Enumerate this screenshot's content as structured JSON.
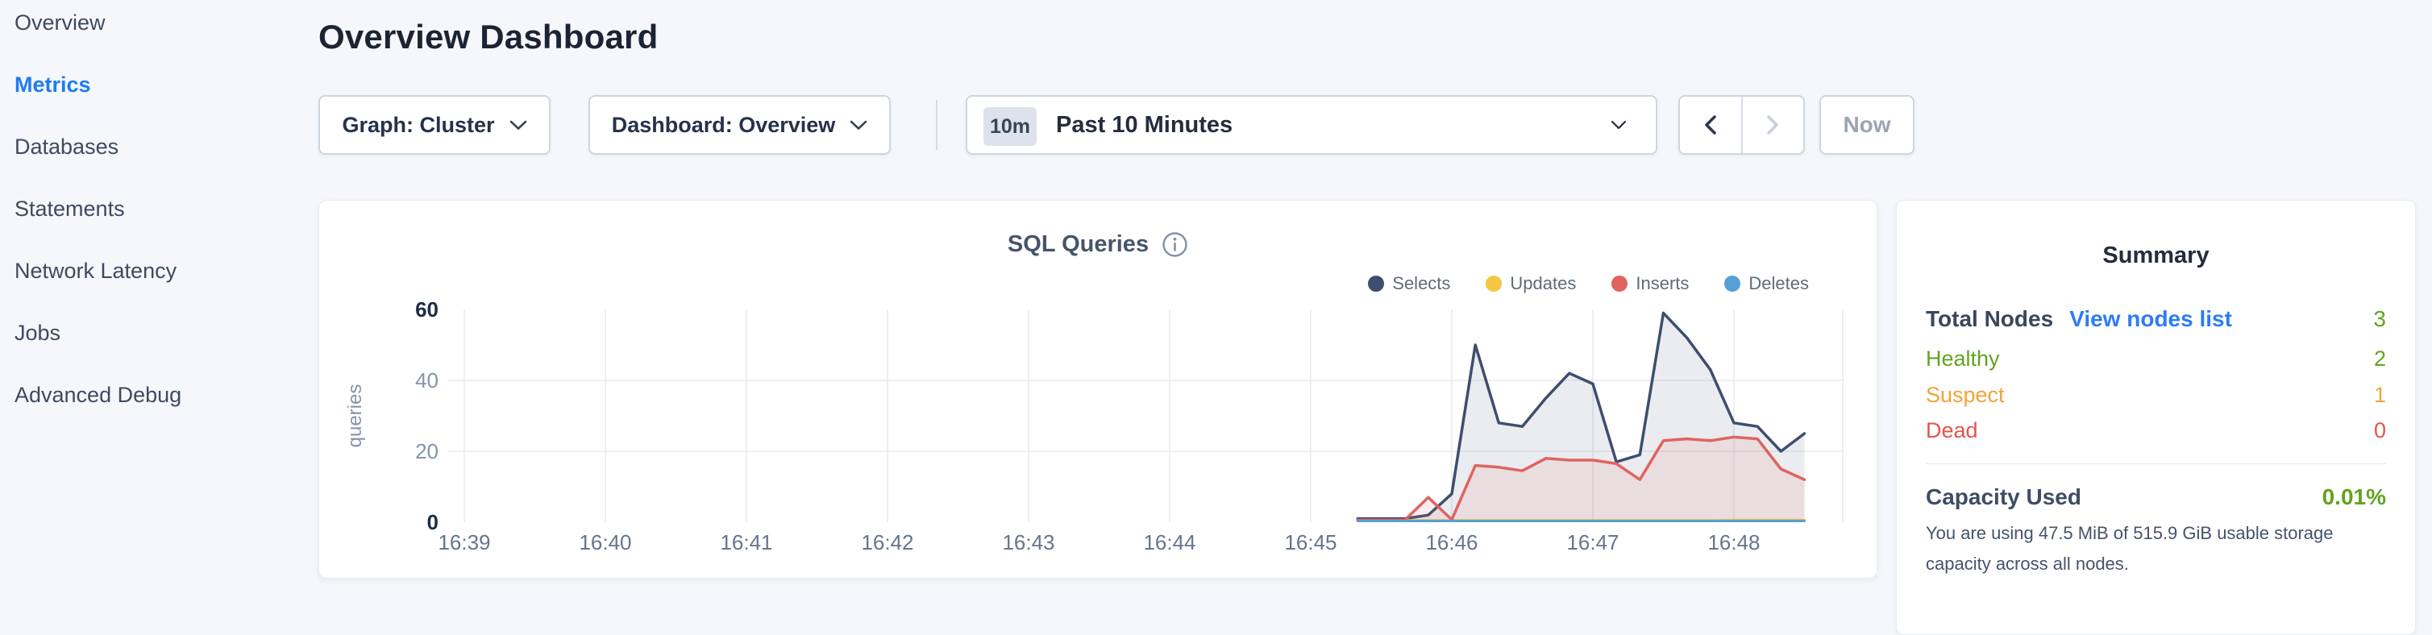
{
  "colors": {
    "page_background": "#f5f7fa",
    "card_background": "#ffffff",
    "accent_blue": "#1f7bf0",
    "link_blue": "#2e7cf0",
    "healthy_green": "#62a41f",
    "suspect_orange": "#f1a33c",
    "dead_red": "#e4544b",
    "series_selects": "#3f4e6e",
    "series_updates": "#f5c643",
    "series_inserts": "#e06360",
    "series_deletes": "#56a0d6"
  },
  "icons": {
    "dropdown": "chevron-down-icon",
    "time_selector": "chevron-down-icon",
    "range_prev": "chevron-left-icon",
    "range_next": "chevron-right-icon",
    "chart_info": "info-circle-icon"
  },
  "sidebar": {
    "items": [
      {
        "label": "Overview",
        "active": false
      },
      {
        "label": "Metrics",
        "active": true
      },
      {
        "label": "Databases",
        "active": false
      },
      {
        "label": "Statements",
        "active": false
      },
      {
        "label": "Network Latency",
        "active": false
      },
      {
        "label": "Jobs",
        "active": false
      },
      {
        "label": "Advanced Debug",
        "active": false
      }
    ]
  },
  "header": {
    "title": "Overview Dashboard"
  },
  "controls": {
    "graph_dropdown": {
      "text": "Graph: Cluster"
    },
    "dashboard_dropdown": {
      "text": "Dashboard: Overview"
    },
    "time_window": {
      "badge": "10m",
      "label": "Past 10 Minutes"
    },
    "now_label": "Now"
  },
  "chart": {
    "title": "SQL Queries",
    "legend": [
      {
        "label": "Selects",
        "color": "#3f4e6e"
      },
      {
        "label": "Updates",
        "color": "#f5c643"
      },
      {
        "label": "Inserts",
        "color": "#e06360"
      },
      {
        "label": "Deletes",
        "color": "#56a0d6"
      }
    ],
    "chart_data": {
      "type": "area",
      "title": "SQL Queries",
      "xlabel": "",
      "ylabel": "queries",
      "ylim": [
        0,
        60
      ],
      "yticks": [
        0,
        20,
        40,
        60
      ],
      "grid_h": [
        20,
        40
      ],
      "legend_position": "top-right",
      "sampling_interval": "10s",
      "xticks": [
        {
          "minute": 39,
          "label": "16:39"
        },
        {
          "minute": 40,
          "label": "16:40"
        },
        {
          "minute": 41,
          "label": "16:41"
        },
        {
          "minute": 42,
          "label": "16:42"
        },
        {
          "minute": 43,
          "label": "16:43"
        },
        {
          "minute": 44,
          "label": "16:44"
        },
        {
          "minute": 45,
          "label": "16:45"
        },
        {
          "minute": 46,
          "label": "16:46"
        },
        {
          "minute": 47,
          "label": "16:47"
        },
        {
          "minute": 48,
          "label": "16:48"
        }
      ],
      "sample_minutes": [
        45.333,
        45.5,
        45.667,
        45.833,
        46.0,
        46.167,
        46.333,
        46.5,
        46.667,
        46.833,
        47.0,
        47.167,
        47.333,
        47.5,
        47.667,
        47.833,
        48.0,
        48.167,
        48.333,
        48.5
      ],
      "series": [
        {
          "name": "Selects",
          "color": "#3f4e6e",
          "area": true,
          "width": 3.5,
          "values": [
            1,
            1,
            1,
            2,
            8,
            50,
            28,
            27,
            35,
            42,
            39,
            17,
            19,
            59,
            52,
            43,
            28,
            27,
            20,
            25
          ]
        },
        {
          "name": "Updates",
          "color": "#f5c643",
          "area": false,
          "width": 3,
          "values": [
            0.5,
            0.5,
            0.5,
            0.5,
            0.5,
            0.5,
            0.5,
            0.5,
            0.5,
            0.5,
            0.5,
            0.5,
            0.5,
            0.5,
            0.5,
            0.5,
            0.6,
            0.6,
            0.6,
            0.6
          ]
        },
        {
          "name": "Inserts",
          "color": "#e06360",
          "area": true,
          "width": 3.5,
          "values": [
            0.6,
            0.6,
            0.6,
            7,
            0.7,
            16,
            15.5,
            14.5,
            18,
            17.5,
            17.5,
            16.5,
            12,
            23,
            23.5,
            23,
            24,
            23.5,
            15,
            12
          ]
        },
        {
          "name": "Deletes",
          "color": "#56a0d6",
          "area": false,
          "width": 3,
          "values": [
            0.35,
            0.35,
            0.35,
            0.35,
            0.35,
            0.35,
            0.35,
            0.35,
            0.35,
            0.35,
            0.35,
            0.35,
            0.35,
            0.35,
            0.35,
            0.35,
            0.35,
            0.35,
            0.35,
            0.35
          ]
        }
      ]
    }
  },
  "summary": {
    "title": "Summary",
    "total": {
      "label": "Total Nodes",
      "link": "View nodes list",
      "value": "3"
    },
    "node_rows": [
      {
        "label": "Healthy",
        "value": "2",
        "color": "#62a41f"
      },
      {
        "label": "Suspect",
        "value": "1",
        "color": "#f1a33c"
      },
      {
        "label": "Dead",
        "value": "0",
        "color": "#e4544b"
      }
    ],
    "capacity": {
      "label": "Capacity Used",
      "value": "0.01%",
      "caption": "You are using 47.5 MiB of 515.9 GiB usable storage capacity across all nodes."
    }
  }
}
